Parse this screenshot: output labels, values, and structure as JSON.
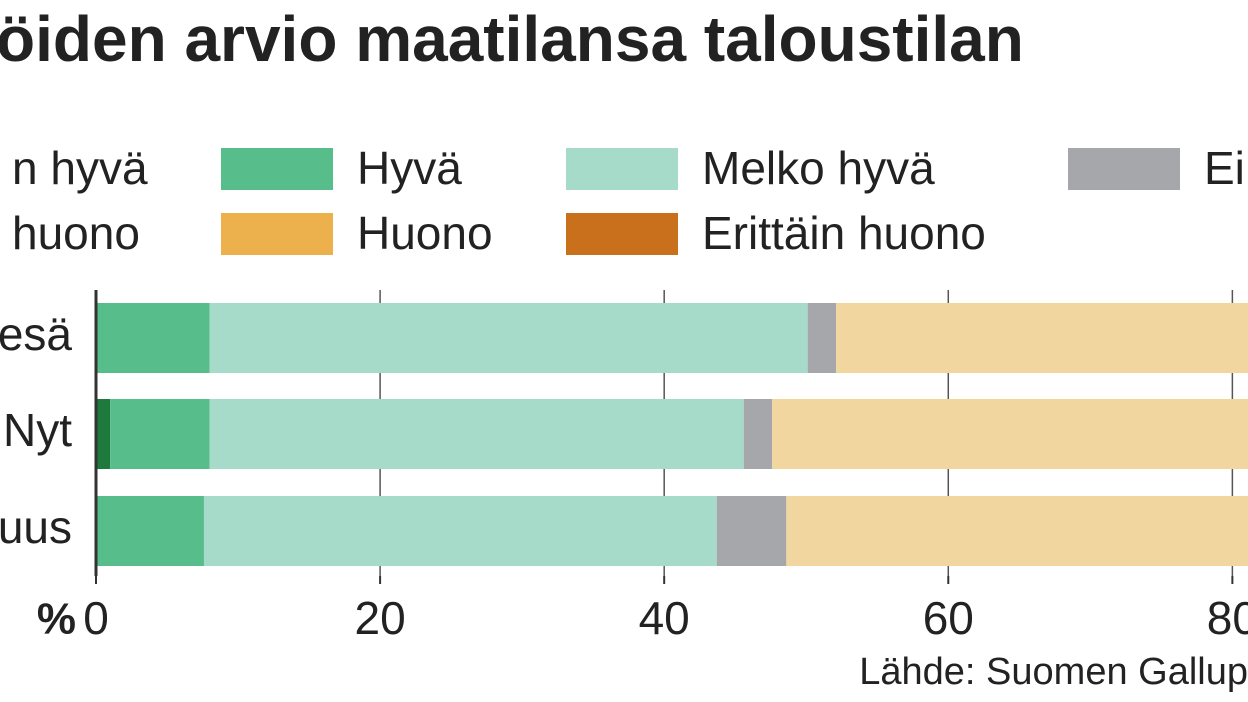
{
  "chart_data": {
    "type": "stacked-barh",
    "title": "öiden arvio maatilansa taloustilan",
    "categories": [
      "esä",
      "Nyt",
      "uus"
    ],
    "series": [
      {
        "name": "n hyvä",
        "color": "#1e7a3c",
        "values": [
          0,
          1,
          0
        ]
      },
      {
        "name": "Hyvä",
        "color": "#57bd8a",
        "values": [
          8,
          7,
          7.6
        ]
      },
      {
        "name": "Melko hyvä",
        "color": "#a5dbc8",
        "values": [
          42.1,
          37.6,
          36.1
        ]
      },
      {
        "name": "Ei",
        "color": "#a6a7ab",
        "values": [
          2,
          2,
          4.9
        ]
      },
      {
        "name": "huono",
        "color": "#f1d6a0",
        "values": [
          35,
          35,
          35
        ]
      },
      {
        "name": "Huono",
        "color": "#ecb04c",
        "values": [
          null,
          null,
          null
        ]
      },
      {
        "name": "Erittäin huono",
        "color": "#c8701c",
        "values": [
          null,
          null,
          null
        ]
      }
    ],
    "xlabel": "%",
    "xlim": [
      0,
      81.1
    ],
    "xticks": [
      0,
      20,
      40,
      60,
      80
    ],
    "grid": true,
    "source": "Lähde: Suomen Gallup"
  }
}
